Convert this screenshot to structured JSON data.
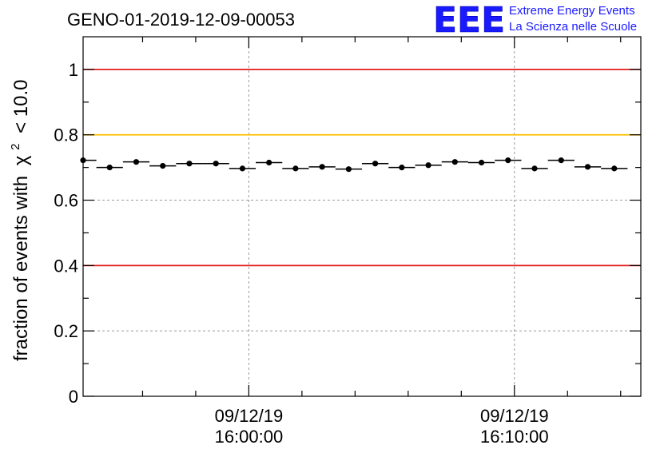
{
  "chart_data": {
    "type": "scatter",
    "title": "GENO-01-2019-12-09-00053",
    "ylabel": "fraction of events with",
    "ylabel_symbol": "χ",
    "ylabel_exponent": "2",
    "ylabel_threshold": "< 10.0",
    "ylim": [
      0,
      1.1
    ],
    "yticks": [
      {
        "value": 0,
        "label": "0"
      },
      {
        "value": 0.2,
        "label": "0.2"
      },
      {
        "value": 0.4,
        "label": "0.4"
      },
      {
        "value": 0.6,
        "label": "0.6"
      },
      {
        "value": 0.8,
        "label": "0.8"
      },
      {
        "value": 1,
        "label": "1"
      }
    ],
    "x_unit": "minutes",
    "xlim": [
      -6.24,
      14.76
    ],
    "x_major_ticks": [
      {
        "value": 0,
        "date": "09/12/19",
        "time": "16:00:00"
      },
      {
        "value": 10,
        "date": "09/12/19",
        "time": "16:10:00"
      }
    ],
    "x_minor_ticks": [
      -4,
      -2,
      2,
      4,
      6,
      8,
      12,
      14
    ],
    "x_bin_halfwidth": 0.5,
    "grid": true,
    "series": [
      {
        "name": "fraction",
        "x": [
          -6.24,
          -5.24,
          -4.24,
          -3.24,
          -2.24,
          -1.24,
          -0.24,
          0.76,
          1.76,
          2.76,
          3.76,
          4.76,
          5.76,
          6.76,
          7.76,
          8.76,
          9.76,
          10.76,
          11.76,
          12.76,
          13.76
        ],
        "y": [
          0.722,
          0.7,
          0.717,
          0.705,
          0.712,
          0.712,
          0.697,
          0.715,
          0.697,
          0.702,
          0.695,
          0.712,
          0.7,
          0.707,
          0.717,
          0.715,
          0.722,
          0.697,
          0.722,
          0.702,
          0.697
        ]
      }
    ],
    "reference_lines": [
      {
        "y": 1.0,
        "color": "#e31a1c"
      },
      {
        "y": 0.8,
        "color": "#ffc000"
      },
      {
        "y": 0.4,
        "color": "#e31a1c"
      }
    ]
  },
  "logo": {
    "mark": "EEE",
    "line1": "Extreme Energy Events",
    "line2": "La Scienza nelle Scuole",
    "color": "#1a1aff"
  }
}
